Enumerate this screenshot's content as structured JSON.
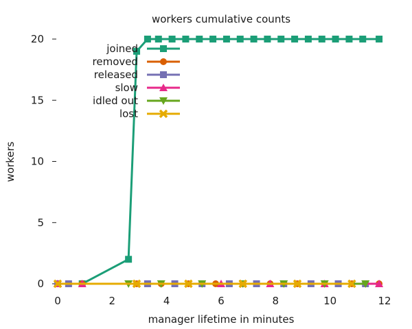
{
  "chart_data": {
    "type": "line",
    "title": "workers cumulative counts",
    "xlabel": "manager lifetime in minutes",
    "ylabel": "workers",
    "xlim": [
      0,
      12
    ],
    "ylim": [
      0,
      20
    ],
    "xticks": [
      0,
      2,
      4,
      6,
      8,
      10,
      12
    ],
    "yticks": [
      0,
      5,
      10,
      15,
      20
    ],
    "grid": false,
    "legend_position": "top-left",
    "series": [
      {
        "name": "joined",
        "color": "#1b9e77",
        "marker": "square",
        "points": [
          [
            0,
            0
          ],
          [
            0.9,
            0
          ],
          [
            2.6,
            2
          ],
          [
            2.9,
            19
          ],
          [
            3.3,
            20
          ],
          [
            3.7,
            20
          ],
          [
            4.2,
            20
          ],
          [
            4.7,
            20
          ],
          [
            5.2,
            20
          ],
          [
            5.7,
            20
          ],
          [
            6.2,
            20
          ],
          [
            6.7,
            20
          ],
          [
            7.2,
            20
          ],
          [
            7.7,
            20
          ],
          [
            8.2,
            20
          ],
          [
            8.7,
            20
          ],
          [
            9.2,
            20
          ],
          [
            9.7,
            20
          ],
          [
            10.2,
            20
          ],
          [
            10.7,
            20
          ],
          [
            11.2,
            20
          ],
          [
            11.8,
            20
          ]
        ]
      },
      {
        "name": "removed",
        "color": "#d95f02",
        "marker": "circle",
        "points": [
          [
            0,
            0
          ],
          [
            0.9,
            0
          ],
          [
            2.9,
            0
          ],
          [
            3.8,
            0
          ],
          [
            4.8,
            0
          ],
          [
            5.8,
            0
          ],
          [
            6.8,
            0
          ],
          [
            7.8,
            0
          ],
          [
            8.8,
            0
          ],
          [
            9.8,
            0
          ],
          [
            10.8,
            0
          ],
          [
            11.8,
            0
          ]
        ]
      },
      {
        "name": "released",
        "color": "#7570b3",
        "marker": "square",
        "points": [
          [
            0,
            0
          ],
          [
            0.4,
            0
          ],
          [
            3.3,
            0
          ],
          [
            4.3,
            0
          ],
          [
            5.3,
            0
          ],
          [
            6.3,
            0
          ],
          [
            7.3,
            0
          ],
          [
            8.3,
            0
          ],
          [
            9.3,
            0
          ],
          [
            10.3,
            0
          ],
          [
            11.3,
            0
          ]
        ]
      },
      {
        "name": "slow",
        "color": "#e7298a",
        "marker": "triangle-up",
        "points": [
          [
            0,
            0
          ],
          [
            0.9,
            0
          ],
          [
            6.0,
            0
          ],
          [
            7.8,
            0
          ],
          [
            9.8,
            0
          ],
          [
            11.8,
            0
          ]
        ]
      },
      {
        "name": "idled out",
        "color": "#66a61e",
        "marker": "triangle-down",
        "points": [
          [
            2.6,
            0
          ],
          [
            3.8,
            0
          ],
          [
            5.3,
            0
          ],
          [
            6.8,
            0
          ],
          [
            8.3,
            0
          ],
          [
            9.8,
            0
          ],
          [
            11.3,
            0
          ]
        ]
      },
      {
        "name": "lost",
        "color": "#e6ab02",
        "marker": "cross",
        "points": [
          [
            0,
            0
          ],
          [
            2.9,
            0
          ],
          [
            4.8,
            0
          ],
          [
            6.8,
            0
          ],
          [
            8.8,
            0
          ],
          [
            10.8,
            0
          ]
        ]
      }
    ]
  }
}
